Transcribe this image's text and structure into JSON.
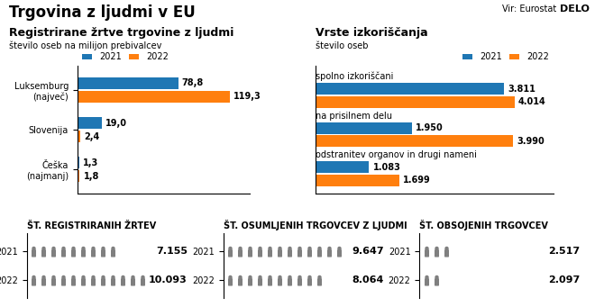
{
  "title": "Trgovina z ljudmi v EU",
  "source": "Vir: Eurostat",
  "credit": "DELO",
  "chart_data": [
    {
      "type": "bar",
      "orientation": "horizontal",
      "title": "Registrirane žrtve trgovine z ljudmi",
      "subtitle": "število oseb na milijon prebivalcev",
      "categories": [
        "Luksemburg\n(največ)",
        "Slovenija",
        "Češka\n(najmanj)"
      ],
      "series": [
        {
          "name": "2021",
          "values": [
            78.8,
            19.0,
            1.3
          ],
          "value_labels": [
            "78,8",
            "19,0",
            "1,3"
          ]
        },
        {
          "name": "2022",
          "values": [
            119.3,
            2.4,
            1.8
          ],
          "value_labels": [
            "119,3",
            "2,4",
            "1,8"
          ]
        }
      ],
      "xlim": [
        0,
        135
      ],
      "data_labels": true,
      "tick_labels": "y",
      "legend": "upper left"
    },
    {
      "type": "bar",
      "orientation": "horizontal",
      "title": "Vrste izkoriščanja",
      "subtitle": "število oseb",
      "categories": [
        "spolno izkoriščani",
        "na prisilnem delu",
        "odstranitev organov in drugi nameni"
      ],
      "series": [
        {
          "name": "2021",
          "values": [
            3811,
            1950,
            1083
          ],
          "value_labels": [
            "3.811",
            "1.950",
            "1.083"
          ]
        },
        {
          "name": "2022",
          "values": [
            4014,
            3990,
            1699
          ],
          "value_labels": [
            "4.014",
            "3.990",
            "1.699"
          ]
        }
      ],
      "xlim": [
        0,
        4800
      ],
      "data_labels": true,
      "tick_labels": false,
      "legend": "upper right"
    },
    {
      "type": "pictogram",
      "title": "ŠT. REGISTRIRANIH ŽRTEV",
      "categories": [
        "2021",
        "2022"
      ],
      "values": [
        7155,
        10093
      ],
      "value_labels": [
        "7.155",
        "10.093"
      ],
      "icons": [
        9,
        12
      ],
      "data_labels": true,
      "tick_labels": "y"
    },
    {
      "type": "pictogram",
      "title": "ŠT. OSUMLJENIH TRGOVCEV Z LJUDMI",
      "categories": [
        "2021",
        "2022"
      ],
      "values": [
        9647,
        8064
      ],
      "value_labels": [
        "9.647",
        "8.064"
      ],
      "icons": [
        12,
        10
      ],
      "data_labels": true,
      "tick_labels": "y"
    },
    {
      "type": "pictogram",
      "title": "ŠT. OBSOJENIH TRGOVCEV",
      "categories": [
        "2021",
        "2022"
      ],
      "values": [
        2517,
        2097
      ],
      "value_labels": [
        "2.517",
        "2.097"
      ],
      "icons": [
        3,
        2
      ],
      "data_labels": true,
      "tick_labels": "y"
    }
  ]
}
